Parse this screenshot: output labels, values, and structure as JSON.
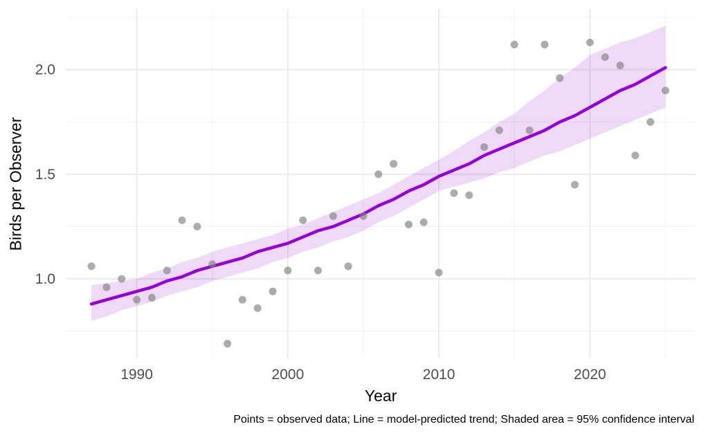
{
  "chart_data": {
    "type": "scatter",
    "title": "",
    "xlabel": "Year",
    "ylabel": "Birds per Observer",
    "caption": "Points = observed data; Line = model-predicted trend; Shaded area = 95% confidence interval",
    "x_tick_labels": [
      "1990",
      "2000",
      "2010",
      "2020"
    ],
    "x_ticks": [
      1990,
      2000,
      2010,
      2020
    ],
    "x_minor_gridlines": [
      1995,
      2005,
      2015,
      2025
    ],
    "y_tick_labels": [
      "1.0",
      "1.5",
      "2.0"
    ],
    "y_ticks": [
      1.0,
      1.5,
      2.0
    ],
    "y_minor_gridlines": [
      0.75,
      1.25,
      1.75,
      2.25
    ],
    "xlim": [
      1985.3,
      2027.0
    ],
    "ylim": [
      0.62,
      2.29
    ],
    "grid": true,
    "legend_position": "none",
    "series": [
      {
        "name": "Observed data",
        "style": "points",
        "color": "#808080",
        "opacity": 0.65
      },
      {
        "name": "Model-predicted trend",
        "style": "line",
        "color": "#9400D3"
      },
      {
        "name": "95% confidence interval",
        "style": "band",
        "color": "rgba(148,0,211,0.15)"
      }
    ],
    "years": [
      1987,
      1988,
      1989,
      1990,
      1991,
      1992,
      1993,
      1994,
      1995,
      1996,
      1997,
      1998,
      1999,
      2000,
      2001,
      2002,
      2003,
      2004,
      2005,
      2006,
      2007,
      2008,
      2009,
      2010,
      2011,
      2012,
      2013,
      2014,
      2015,
      2016,
      2017,
      2018,
      2019,
      2020,
      2021,
      2022,
      2023,
      2024,
      2025
    ],
    "observed": [
      1.06,
      0.96,
      1.0,
      0.9,
      0.91,
      1.04,
      1.28,
      1.25,
      1.07,
      0.69,
      0.9,
      0.86,
      0.94,
      1.04,
      1.28,
      1.04,
      1.3,
      1.06,
      1.3,
      1.5,
      1.55,
      1.26,
      1.27,
      1.03,
      1.41,
      1.4,
      1.63,
      1.71,
      2.12,
      1.71,
      2.12,
      1.96,
      1.45,
      2.13,
      2.06,
      2.02,
      1.59,
      1.75,
      1.9
    ],
    "trend": [
      0.88,
      0.9,
      0.92,
      0.94,
      0.96,
      0.99,
      1.01,
      1.04,
      1.06,
      1.08,
      1.1,
      1.13,
      1.15,
      1.17,
      1.2,
      1.23,
      1.25,
      1.28,
      1.31,
      1.35,
      1.38,
      1.42,
      1.45,
      1.49,
      1.52,
      1.55,
      1.59,
      1.62,
      1.65,
      1.68,
      1.71,
      1.75,
      1.78,
      1.82,
      1.86,
      1.9,
      1.93,
      1.97,
      2.01
    ],
    "ci_upper": [
      0.97,
      0.98,
      0.99,
      1.0,
      1.03,
      1.05,
      1.08,
      1.1,
      1.13,
      1.15,
      1.17,
      1.19,
      1.21,
      1.24,
      1.26,
      1.29,
      1.32,
      1.35,
      1.38,
      1.41,
      1.45,
      1.49,
      1.53,
      1.57,
      1.61,
      1.66,
      1.7,
      1.75,
      1.79,
      1.85,
      1.9,
      1.96,
      2.01,
      2.07,
      2.1,
      2.13,
      2.15,
      2.18,
      2.21
    ],
    "ci_lower": [
      0.8,
      0.82,
      0.85,
      0.87,
      0.89,
      0.92,
      0.94,
      0.96,
      0.99,
      1.01,
      1.03,
      1.05,
      1.08,
      1.1,
      1.13,
      1.15,
      1.18,
      1.2,
      1.23,
      1.27,
      1.3,
      1.34,
      1.38,
      1.42,
      1.44,
      1.46,
      1.48,
      1.51,
      1.53,
      1.56,
      1.59,
      1.61,
      1.64,
      1.67,
      1.7,
      1.73,
      1.76,
      1.79,
      1.82
    ]
  },
  "colors": {
    "background": "#ffffff",
    "grid_major": "#E7E7E7",
    "grid_minor": "#F1F1F1",
    "trend_line": "#9400D3",
    "ci_band": "rgba(148,0,211,0.15)",
    "points": "#808080",
    "tick_text": "#4D4D4D",
    "title_text": "#000000"
  }
}
